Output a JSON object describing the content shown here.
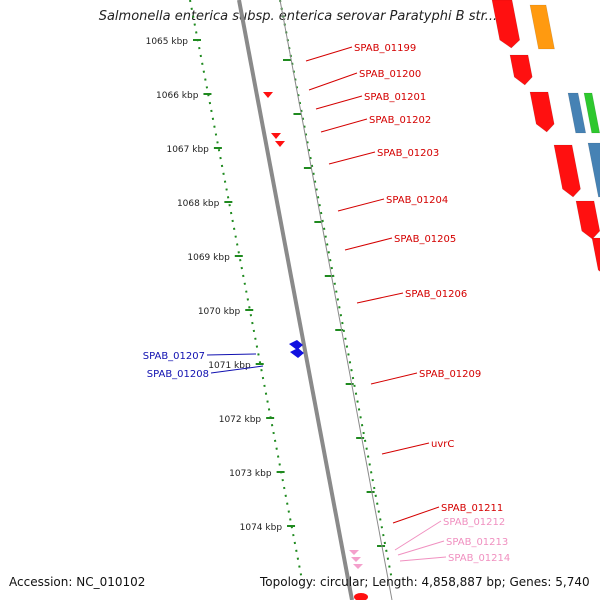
{
  "title": "Salmonella enterica subsp. enterica serovar Paratyphi B str....",
  "accession": "Accession: NC_010102",
  "topology": "Topology: circular; Length: 4,858,887 bp; Genes: 5,740",
  "ruler": [
    "1065 kbp",
    "1066 kbp",
    "1067 kbp",
    "1068 kbp",
    "1069 kbp",
    "1070 kbp",
    "1071 kbp",
    "1072 kbp",
    "1073 kbp",
    "1074 kbp"
  ],
  "gene_labels": [
    {
      "name": "SPAB_01199",
      "side": "right",
      "color": "#d40000"
    },
    {
      "name": "SPAB_01200",
      "side": "right",
      "color": "#d40000"
    },
    {
      "name": "SPAB_01201",
      "side": "right",
      "color": "#d40000"
    },
    {
      "name": "SPAB_01202",
      "side": "right",
      "color": "#d40000"
    },
    {
      "name": "SPAB_01203",
      "side": "right",
      "color": "#d40000"
    },
    {
      "name": "SPAB_01204",
      "side": "right",
      "color": "#d40000"
    },
    {
      "name": "SPAB_01205",
      "side": "right",
      "color": "#d40000"
    },
    {
      "name": "SPAB_01206",
      "side": "right",
      "color": "#d40000"
    },
    {
      "name": "SPAB_01207",
      "side": "left",
      "color": "#1010b0"
    },
    {
      "name": "SPAB_01208",
      "side": "left",
      "color": "#1010b0"
    },
    {
      "name": "SPAB_01209",
      "side": "right",
      "color": "#d40000"
    },
    {
      "name": "uvrC",
      "side": "right",
      "color": "#d40000"
    },
    {
      "name": "SPAB_01211",
      "side": "right",
      "color": "#d40000"
    },
    {
      "name": "SPAB_01212",
      "side": "right",
      "color": "#f090c0"
    },
    {
      "name": "SPAB_01213",
      "side": "right",
      "color": "#f090c0"
    },
    {
      "name": "SPAB_01214",
      "side": "right",
      "color": "#f090c0"
    }
  ],
  "colors": {
    "backbone": "#8a8a8a",
    "ruler": "#1f8a1f",
    "gene_red": "#ff1010",
    "gene_orange": "#ff9a10",
    "gene_blue": "#4682b4",
    "gene_green": "#2ec82e",
    "gene_pink": "#ff2a9a",
    "gene_purple": "#7060cc",
    "gene_light_pink": "#f4a0cc",
    "gene_navy": "#1010e0"
  }
}
